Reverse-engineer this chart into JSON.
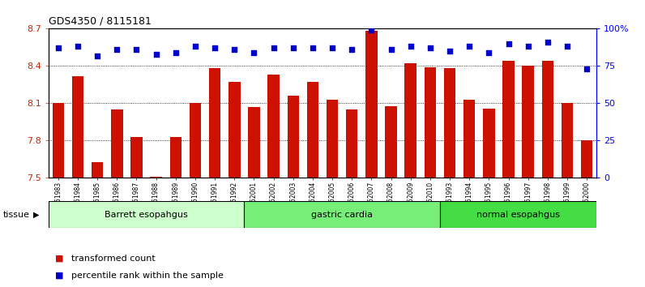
{
  "title": "GDS4350 / 8115181",
  "samples": [
    "GSM851983",
    "GSM851984",
    "GSM851985",
    "GSM851986",
    "GSM851987",
    "GSM851988",
    "GSM851989",
    "GSM851990",
    "GSM851991",
    "GSM851992",
    "GSM852001",
    "GSM852002",
    "GSM852003",
    "GSM852004",
    "GSM852005",
    "GSM852006",
    "GSM852007",
    "GSM852008",
    "GSM852009",
    "GSM852010",
    "GSM851993",
    "GSM851994",
    "GSM851995",
    "GSM851996",
    "GSM851997",
    "GSM851998",
    "GSM851999",
    "GSM852000"
  ],
  "bar_values": [
    8.1,
    8.32,
    7.63,
    8.05,
    7.83,
    7.51,
    7.83,
    8.1,
    8.38,
    8.27,
    8.07,
    8.33,
    8.16,
    8.27,
    8.13,
    8.05,
    8.68,
    8.08,
    8.42,
    8.39,
    8.38,
    8.13,
    8.06,
    8.44,
    8.4,
    8.44,
    8.1,
    7.8
  ],
  "percentile_values": [
    87,
    88,
    82,
    86,
    86,
    83,
    84,
    88,
    87,
    86,
    84,
    87,
    87,
    87,
    87,
    86,
    99,
    86,
    88,
    87,
    85,
    88,
    84,
    90,
    88,
    91,
    88,
    73
  ],
  "groups": [
    {
      "label": "Barrett esopahgus",
      "start": 0,
      "end": 10,
      "color": "#ccffcc"
    },
    {
      "label": "gastric cardia",
      "start": 10,
      "end": 20,
      "color": "#77ee77"
    },
    {
      "label": "normal esopahgus",
      "start": 20,
      "end": 28,
      "color": "#44dd44"
    }
  ],
  "ylim_left": [
    7.5,
    8.7
  ],
  "ylim_right": [
    0,
    100
  ],
  "yticks_left": [
    7.5,
    7.8,
    8.1,
    8.4,
    8.7
  ],
  "yticks_right": [
    0,
    25,
    50,
    75,
    100
  ],
  "ytick_labels_right": [
    "0",
    "25",
    "50",
    "75",
    "100%"
  ],
  "bar_color": "#cc1100",
  "dot_color": "#0000cc",
  "bar_width": 0.6,
  "grid_color": "#000000",
  "bg_color": "#ffffff",
  "tick_label_color": "#cc2200",
  "legend_items": [
    {
      "label": "transformed count",
      "color": "#cc1100"
    },
    {
      "label": "percentile rank within the sample",
      "color": "#0000cc"
    }
  ]
}
